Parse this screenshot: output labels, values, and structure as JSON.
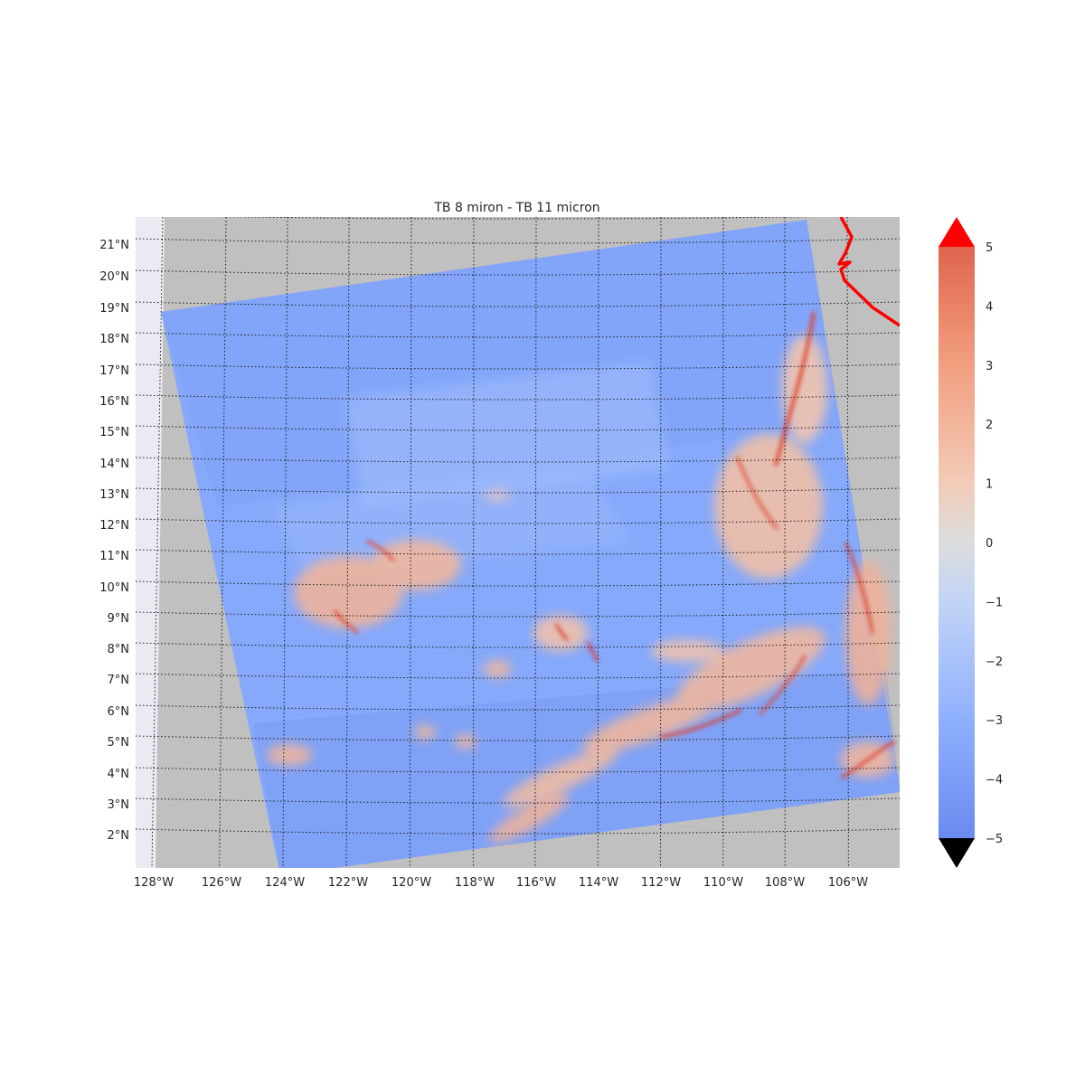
{
  "title": "TB 8 miron - TB 11 micron",
  "lat_labels": [
    "21°N",
    "20°N",
    "19°N",
    "18°N",
    "17°N",
    "16°N",
    "15°N",
    "14°N",
    "13°N",
    "12°N",
    "11°N",
    "10°N",
    "9°N",
    "8°N",
    "7°N",
    "6°N",
    "5°N",
    "4°N",
    "3°N",
    "2°N"
  ],
  "lon_labels": [
    "128°W",
    "126°W",
    "124°W",
    "122°W",
    "120°W",
    "118°W",
    "116°W",
    "114°W",
    "112°W",
    "110°W",
    "108°W",
    "106°W"
  ],
  "colorbar": {
    "ticks": [
      "5",
      "4",
      "3",
      "2",
      "1",
      "0",
      "−1",
      "−2",
      "−3",
      "−4",
      "−5"
    ],
    "vmin": -5,
    "vmax": 5,
    "over_color": "#ff0000",
    "under_color": "#000000",
    "colormap": "coolwarm"
  },
  "colors": {
    "background_gray": "#c0c0c0",
    "no_data_light": "#eaeaf2",
    "coastline": "#ff0000",
    "swath_base": "#86a9fb"
  }
}
